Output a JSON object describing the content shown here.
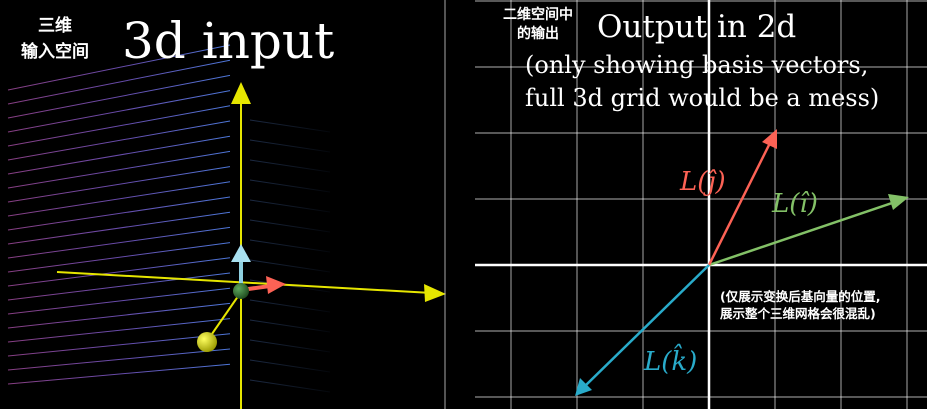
{
  "left_panel": {
    "caption_cn_line1": "三维",
    "caption_cn_line2": "输入空间",
    "title": "3d input"
  },
  "right_panel": {
    "caption_cn_line1": "二维空间中",
    "caption_cn_line2": "的输出",
    "title": "Output in 2d",
    "subtitle_line1": "(only showing basis vectors,",
    "subtitle_line2": "full 3d grid would be a mess)",
    "note_cn_line1": "(仅展示变换后基向量的位置,",
    "note_cn_line2": "展示整个三维网格会很混乱)"
  },
  "vectors": {
    "i": {
      "label": "L(î)",
      "color": "#83c167"
    },
    "j": {
      "label": "L(ĵ)",
      "color": "#fc6255"
    },
    "k": {
      "label": "L(k̂)",
      "color": "#29abca"
    }
  },
  "colors": {
    "axis": "#e6e600",
    "grid": "#ffffff",
    "sphere_yellow": "#e6e600",
    "sphere_green": "#3d7a3d"
  }
}
